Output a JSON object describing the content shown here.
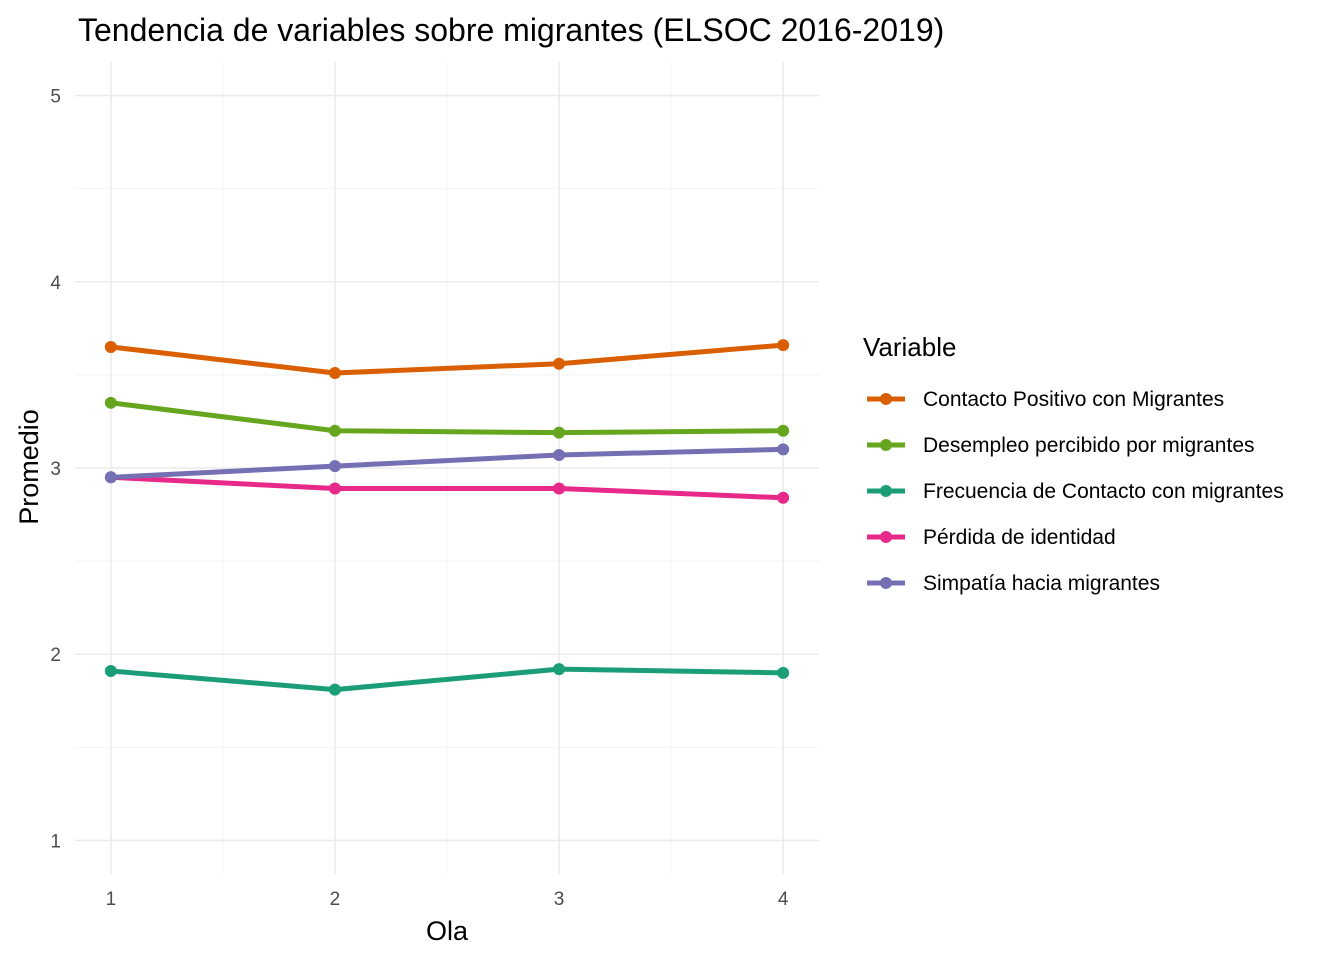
{
  "chart_data": {
    "type": "line",
    "title": "Tendencia de variables sobre migrantes (ELSOC 2016-2019)",
    "xlabel": "Ola",
    "ylabel": "Promedio",
    "x": [
      1,
      2,
      3,
      4
    ],
    "x_tick_labels": [
      "1",
      "2",
      "3",
      "4"
    ],
    "y_ticks": [
      1,
      2,
      3,
      4,
      5
    ],
    "y_tick_labels": [
      "1",
      "2",
      "3",
      "4",
      "5"
    ],
    "xlim": [
      0.84,
      4.16
    ],
    "ylim": [
      0.82,
      5.18
    ],
    "grid": true,
    "legend": {
      "title": "Variable",
      "position": "right"
    },
    "series": [
      {
        "name": "Contacto Positivo con Migrantes",
        "color": "#D95F02",
        "values": [
          3.65,
          3.51,
          3.56,
          3.66
        ]
      },
      {
        "name": "Desempleo percibido por migrantes",
        "color": "#66A61E",
        "values": [
          3.35,
          3.2,
          3.19,
          3.2
        ]
      },
      {
        "name": "Frecuencia de Contacto con migrantes",
        "color": "#1B9E77",
        "values": [
          1.91,
          1.81,
          1.92,
          1.9
        ]
      },
      {
        "name": "Pérdida de identidad",
        "color": "#E7298A",
        "values": [
          2.95,
          2.89,
          2.89,
          2.84
        ]
      },
      {
        "name": "Simpatía hacia migrantes",
        "color": "#7570B3",
        "values": [
          2.95,
          3.01,
          3.07,
          3.1
        ]
      }
    ]
  }
}
